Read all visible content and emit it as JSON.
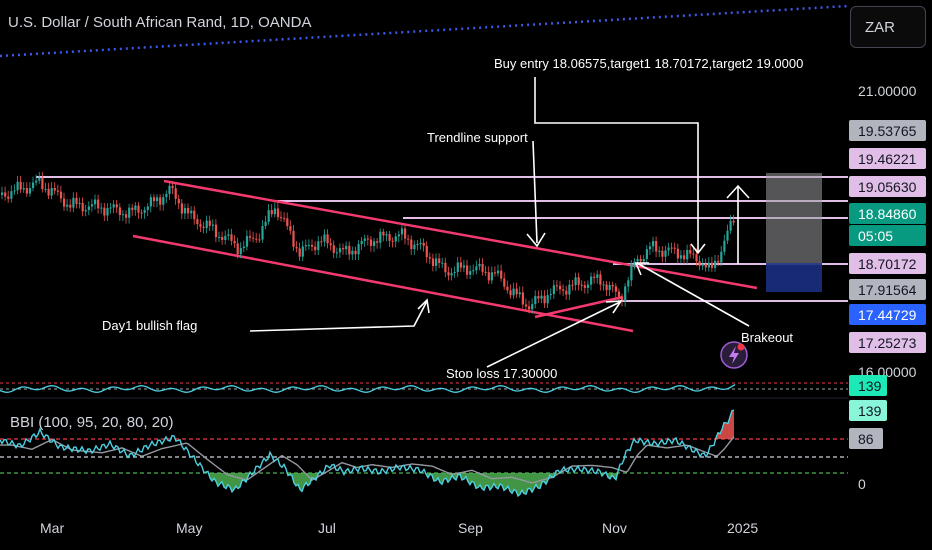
{
  "header": {
    "title": "U.S. Dollar / South African Rand, 1D, OANDA",
    "currency_button": "ZAR"
  },
  "price_axis": {
    "ticks": [
      "21.00000",
      "16.00000",
      "0"
    ],
    "tags": [
      {
        "value": "19.53765",
        "bg": "#b2b5be",
        "fg": "#131722"
      },
      {
        "value": "19.46221",
        "bg": "#e1bee7",
        "fg": "#131722"
      },
      {
        "value": "19.05630",
        "bg": "#e1bee7",
        "fg": "#131722"
      },
      {
        "value": "18.84860",
        "bg": "#089981",
        "fg": "#ffffff"
      },
      {
        "value": "05:05",
        "bg": "#089981",
        "fg": "#ffffff"
      },
      {
        "value": "18.70172",
        "bg": "#e1bee7",
        "fg": "#131722"
      },
      {
        "value": "17.91564",
        "bg": "#b2b5be",
        "fg": "#131722"
      },
      {
        "value": "17.44729",
        "bg": "#2962ff",
        "fg": "#ffffff"
      },
      {
        "value": "17.25273",
        "bg": "#e1bee7",
        "fg": "#131722"
      }
    ],
    "osc_tags": [
      {
        "value": "139",
        "bg": "#1de9b6",
        "fg": "#131722"
      },
      {
        "value": "139",
        "bg": "#89f5d9",
        "fg": "#131722"
      },
      {
        "value": "86",
        "bg": "#b2b5be",
        "fg": "#131722"
      }
    ]
  },
  "time_axis": [
    "Mar",
    "May",
    "Jul",
    "Sep",
    "Nov",
    "2025"
  ],
  "annotations": {
    "buy_entry": "Buy entry 18.06575,target1 18.70172,target2 19.0000",
    "trendline": "Trendline support",
    "flag": "Day1 bullish flag",
    "breakout": "Brakeout",
    "stoploss": "Stop loss 17.30000"
  },
  "indicator": {
    "label": "BBI (100, 95, 20, 80, 20)"
  },
  "colors": {
    "bull": "#26a69a",
    "bear": "#ef5350",
    "channel": "#f23a6e",
    "level": "#e1bee7",
    "oscillator": "#4dd0e1"
  },
  "chart_data": {
    "type": "candlestick",
    "symbol": "USDZAR",
    "timeframe": "1D",
    "key_levels": [
      19.46221,
      19.0563,
      18.70172,
      17.91564,
      17.25273
    ],
    "last_price": 18.8486,
    "trade": {
      "entry": 18.06575,
      "target1": 18.70172,
      "target2": 19.0,
      "stop_loss": 17.3
    },
    "oscillator_last": 139,
    "oscillator_mid": 86
  }
}
